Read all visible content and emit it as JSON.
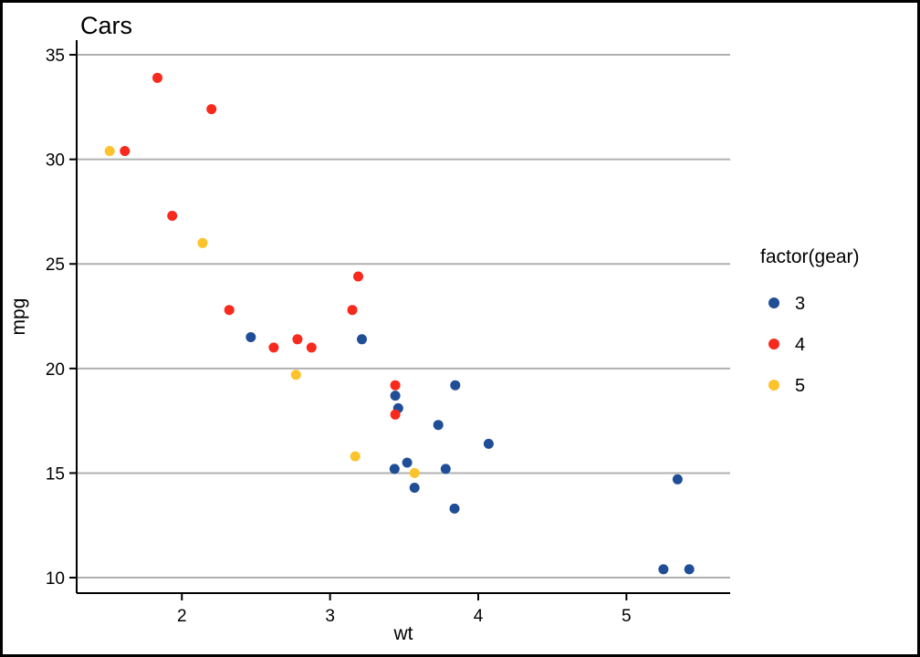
{
  "chart_data": {
    "type": "scatter",
    "title": "Cars",
    "xlabel": "wt",
    "ylabel": "mpg",
    "xlim": [
      1.29,
      5.7
    ],
    "ylim": [
      9.26,
      35.7
    ],
    "xticks": [
      2,
      3,
      4,
      5
    ],
    "yticks": [
      10,
      15,
      20,
      25,
      30,
      35
    ],
    "grid": "horizontal-major",
    "grid_color": "#b0b0b0",
    "legend": {
      "title": "factor(gear)",
      "position": "right",
      "entries": [
        {
          "label": "3",
          "color": "#1f4e96"
        },
        {
          "label": "4",
          "color": "#f8291d"
        },
        {
          "label": "5",
          "color": "#fdc32b"
        }
      ]
    },
    "series": [
      {
        "name": "3",
        "color": "#1f4e96",
        "points": [
          [
            3.215,
            21.4
          ],
          [
            3.44,
            18.7
          ],
          [
            3.46,
            18.1
          ],
          [
            3.57,
            14.3
          ],
          [
            4.07,
            16.4
          ],
          [
            3.73,
            17.3
          ],
          [
            3.78,
            15.2
          ],
          [
            5.25,
            10.4
          ],
          [
            5.424,
            10.4
          ],
          [
            5.345,
            14.7
          ],
          [
            2.465,
            21.5
          ],
          [
            3.52,
            15.5
          ],
          [
            3.435,
            15.2
          ],
          [
            3.84,
            13.3
          ],
          [
            3.845,
            19.2
          ]
        ]
      },
      {
        "name": "4",
        "color": "#f8291d",
        "points": [
          [
            2.62,
            21.0
          ],
          [
            2.875,
            21.0
          ],
          [
            2.32,
            22.8
          ],
          [
            3.19,
            24.4
          ],
          [
            3.15,
            22.8
          ],
          [
            3.44,
            19.2
          ],
          [
            3.44,
            17.8
          ],
          [
            2.2,
            32.4
          ],
          [
            1.615,
            30.4
          ],
          [
            1.835,
            33.9
          ],
          [
            1.935,
            27.3
          ],
          [
            2.78,
            21.4
          ]
        ]
      },
      {
        "name": "5",
        "color": "#fdc32b",
        "points": [
          [
            2.14,
            26.0
          ],
          [
            1.513,
            30.4
          ],
          [
            3.17,
            15.8
          ],
          [
            2.77,
            19.7
          ],
          [
            3.57,
            15.0
          ]
        ]
      }
    ]
  }
}
